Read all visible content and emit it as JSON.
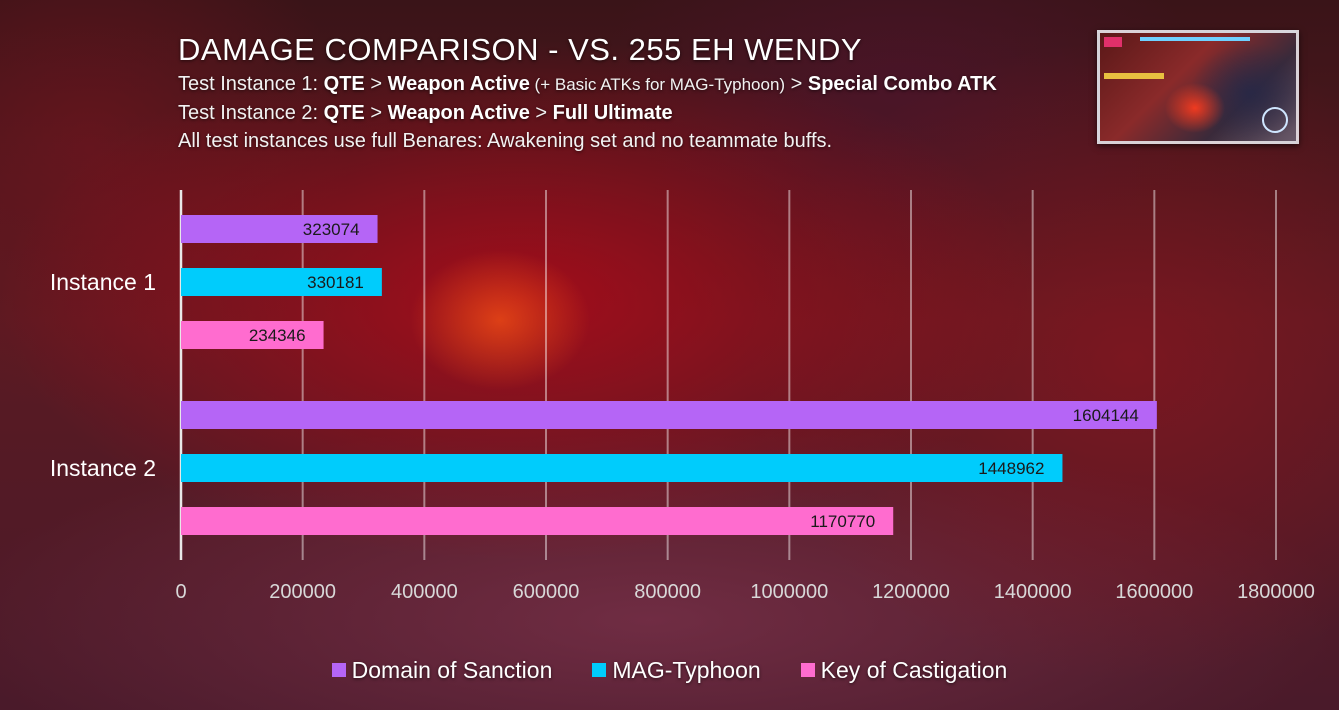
{
  "header": {
    "title": "DAMAGE COMPARISON - VS. 255 EH WENDY",
    "line1": {
      "prefix": "Test Instance 1: ",
      "s1": "QTE",
      "sep1": " > ",
      "s2": "Weapon Active",
      "note": " (+ Basic ATKs for MAG-Typhoon)",
      "sep2": " > ",
      "s3": "Special Combo ATK"
    },
    "line2": {
      "prefix": "Test Instance 2: ",
      "s1": "QTE",
      "sep1": " > ",
      "s2": "Weapon Active",
      "sep2": " > ",
      "s3": "Full Ultimate"
    },
    "line3": "All test instances use full Benares: Awakening set and no teammate buffs."
  },
  "thumbnail": {
    "icon": "gameplay-screenshot-thumbnail"
  },
  "colors": {
    "domain": "#b565f6",
    "mag": "#00ccfc",
    "key": "#ff6ccf",
    "axis": "#e8e8e8",
    "grid": "rgba(255,255,255,0.45)"
  },
  "chart_data": {
    "type": "bar",
    "orientation": "horizontal",
    "title": "DAMAGE COMPARISON - VS. 255 EH WENDY",
    "categories": [
      "Instance 1",
      "Instance 2"
    ],
    "series": [
      {
        "name": "Domain of Sanction",
        "values": [
          323074,
          1604144
        ]
      },
      {
        "name": "MAG-Typhoon",
        "values": [
          330181,
          1448962
        ]
      },
      {
        "name": "Key of Castigation",
        "values": [
          234346,
          1170770
        ]
      }
    ],
    "xlim": [
      0,
      1800000
    ],
    "xticks": [
      0,
      200000,
      400000,
      600000,
      800000,
      1000000,
      1200000,
      1400000,
      1600000,
      1800000
    ],
    "grid": true,
    "legend": "bottom-center",
    "data_labels": true
  }
}
